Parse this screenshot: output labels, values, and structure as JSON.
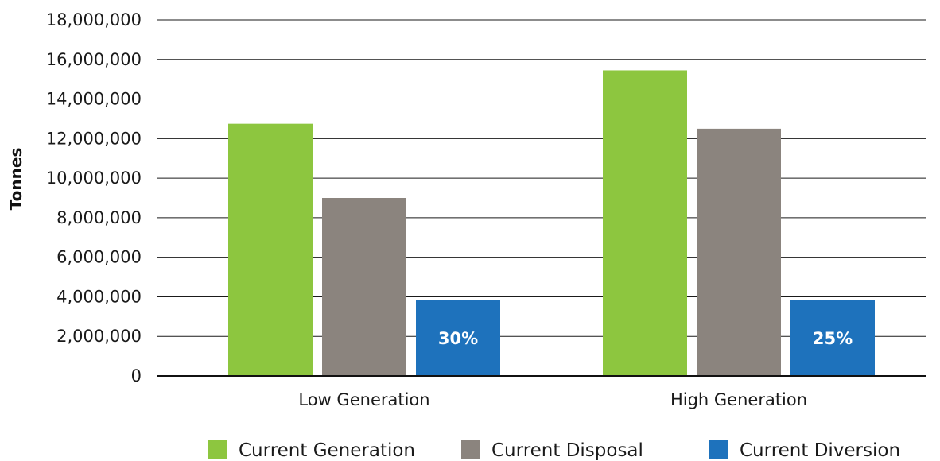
{
  "chart_data": {
    "type": "bar",
    "categories": [
      "Low Generation",
      "High Generation"
    ],
    "series": [
      {
        "name": "Current Generation",
        "color": "#8dc63f",
        "values": [
          12750000,
          15450000
        ]
      },
      {
        "name": "Current Disposal",
        "color": "#8b847e",
        "values": [
          9000000,
          12500000
        ]
      },
      {
        "name": "Current Diversion",
        "color": "#1e72bc",
        "values": [
          3850000,
          3850000
        ],
        "labels": [
          "30%",
          "25%"
        ]
      }
    ],
    "xlabel": "",
    "ylabel": "Tonnes",
    "ylim": [
      0,
      18000000
    ],
    "yticks": [
      0,
      2000000,
      4000000,
      6000000,
      8000000,
      10000000,
      12000000,
      14000000,
      16000000,
      18000000
    ],
    "ytick_labels": [
      "0",
      "2,000,000",
      "4,000,000",
      "6,000,000",
      "8,000,000",
      "10,000,000",
      "12,000,000",
      "14,000,000",
      "16,000,000",
      "18,000,000"
    ],
    "grid": true,
    "legend_position": "bottom"
  }
}
